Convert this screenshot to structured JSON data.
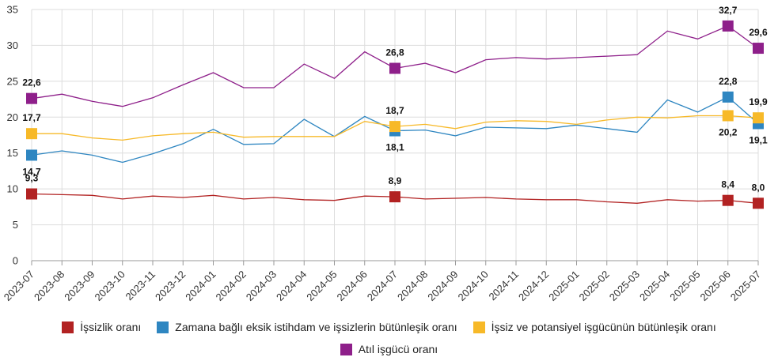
{
  "chart_data": {
    "type": "line",
    "categories": [
      "2023-07",
      "2023-08",
      "2023-09",
      "2023-10",
      "2023-11",
      "2023-12",
      "2024-01",
      "2024-02",
      "2024-03",
      "2024-04",
      "2024-05",
      "2024-06",
      "2024-07",
      "2024-08",
      "2024-09",
      "2024-10",
      "2024-11",
      "2024-12",
      "2025-01",
      "2025-02",
      "2025-03",
      "2025-04",
      "2025-05",
      "2025-06",
      "2025-07"
    ],
    "ylim": [
      0,
      35
    ],
    "yticks": [
      0,
      5,
      10,
      15,
      20,
      25,
      30,
      35
    ],
    "grid": true,
    "legend_position": "bottom",
    "series": [
      {
        "name": "İşsizlik oranı",
        "color": "#b22222",
        "values": [
          9.3,
          9.2,
          9.1,
          8.6,
          9.0,
          8.8,
          9.1,
          8.6,
          8.8,
          8.5,
          8.4,
          9.0,
          8.9,
          8.6,
          8.7,
          8.8,
          8.6,
          8.5,
          8.5,
          8.2,
          8.0,
          8.5,
          8.3,
          8.4,
          8.0
        ],
        "labeled": [
          {
            "index": 0,
            "label": "9,3"
          },
          {
            "index": 12,
            "label": "8,9"
          },
          {
            "index": 23,
            "label": "8,4"
          },
          {
            "index": 24,
            "label": "8,0"
          }
        ]
      },
      {
        "name": "Zamana bağlı eksik istihdam ve işsizlerin bütünleşik oranı",
        "color": "#2e86c1",
        "values": [
          14.7,
          15.3,
          14.7,
          13.7,
          14.9,
          16.3,
          18.3,
          16.2,
          16.3,
          19.7,
          17.3,
          20.1,
          18.1,
          18.2,
          17.4,
          18.6,
          18.5,
          18.4,
          18.9,
          18.4,
          17.9,
          22.4,
          20.7,
          22.8,
          19.1
        ],
        "labeled": [
          {
            "index": 0,
            "label": "14,7"
          },
          {
            "index": 12,
            "label": "18,1"
          },
          {
            "index": 23,
            "label": "22,8"
          },
          {
            "index": 24,
            "label": "19,1"
          }
        ]
      },
      {
        "name": "İşsiz ve potansiyel işgücünün bütünleşik oranı",
        "color": "#f7b928",
        "values": [
          17.7,
          17.7,
          17.1,
          16.8,
          17.4,
          17.7,
          17.9,
          17.2,
          17.3,
          17.3,
          17.3,
          19.4,
          18.7,
          19.0,
          18.4,
          19.3,
          19.5,
          19.4,
          19.0,
          19.6,
          20.0,
          19.9,
          20.2,
          20.2,
          19.9
        ],
        "labeled": [
          {
            "index": 0,
            "label": "17,7"
          },
          {
            "index": 12,
            "label": "18,7"
          },
          {
            "index": 23,
            "label": "20,2"
          },
          {
            "index": 24,
            "label": "19,9"
          }
        ]
      },
      {
        "name": "Atıl işgücü oranı",
        "color": "#8e1f8a",
        "values": [
          22.6,
          23.2,
          22.2,
          21.5,
          22.7,
          24.5,
          26.2,
          24.1,
          24.1,
          27.4,
          25.4,
          29.1,
          26.8,
          27.5,
          26.2,
          28.0,
          28.3,
          28.1,
          28.3,
          28.5,
          28.7,
          32.0,
          30.9,
          32.7,
          29.6
        ],
        "labeled": [
          {
            "index": 0,
            "label": "22,6"
          },
          {
            "index": 12,
            "label": "26,8"
          },
          {
            "index": 23,
            "label": "32,7"
          },
          {
            "index": 24,
            "label": "29,6"
          }
        ]
      }
    ]
  }
}
